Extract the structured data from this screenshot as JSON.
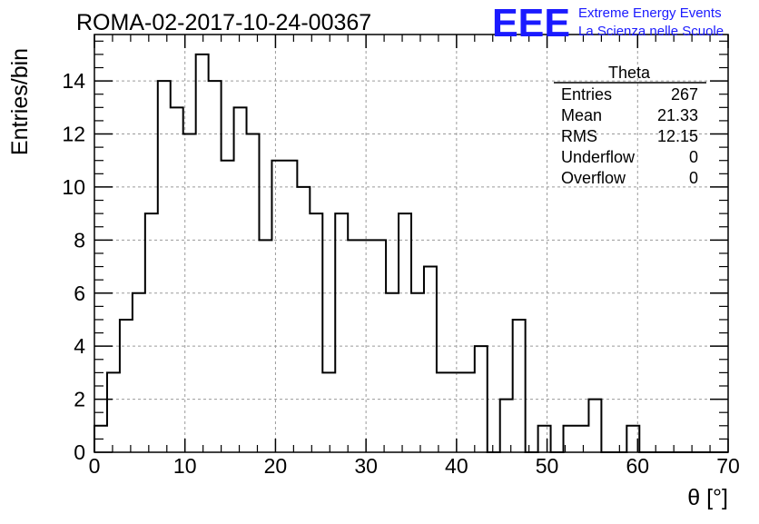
{
  "chart_data": {
    "type": "histogram",
    "title": "ROMA-02-2017-10-24-00367",
    "xlabel": "θ [°]",
    "ylabel": "Entries/bin",
    "xlim": [
      0,
      70
    ],
    "ylim": [
      0,
      15.75
    ],
    "grid": true,
    "bin_width": 1.4,
    "values": [
      1,
      3,
      5,
      6,
      9,
      14,
      13,
      12,
      15,
      14,
      11,
      13,
      12,
      8,
      11,
      11,
      10,
      9,
      3,
      9,
      8,
      8,
      8,
      6,
      9,
      6,
      7,
      3,
      3,
      3,
      4,
      0,
      2,
      5,
      0,
      1,
      0,
      1,
      1,
      2,
      0,
      0,
      1,
      0,
      0,
      0,
      0,
      0,
      0,
      0
    ],
    "xticks": [
      "0",
      "10",
      "20",
      "30",
      "40",
      "50",
      "60",
      "70"
    ],
    "yticks": [
      "0",
      "2",
      "4",
      "6",
      "8",
      "10",
      "12",
      "14"
    ],
    "stats": {
      "name": "Theta",
      "rows": [
        {
          "label": "Entries",
          "value": "267"
        },
        {
          "label": "Mean",
          "value": "21.33"
        },
        {
          "label": "RMS",
          "value": "12.15"
        },
        {
          "label": "Underflow",
          "value": "0"
        },
        {
          "label": "Overflow",
          "value": "0"
        }
      ]
    }
  },
  "logo": {
    "text": "EEE",
    "line1": "Extreme Energy Events",
    "line2": "La Scienza nelle Scuole",
    "color": "#1a1aff"
  }
}
